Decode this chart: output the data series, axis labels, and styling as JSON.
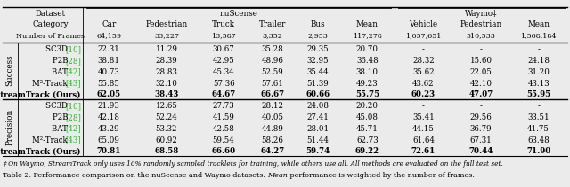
{
  "nuscense_cols": [
    "Car",
    "Pedestrian",
    "Truck",
    "Trailer",
    "Bus",
    "Mean"
  ],
  "waymo_cols": [
    "Vehicle",
    "Pedestrian",
    "Mean"
  ],
  "frame_nums": [
    "64,159",
    "33,227",
    "13,587",
    "3,352",
    "2,953",
    "117,278",
    "1,057,651",
    "510,533",
    "1,568,184"
  ],
  "success_rows": [
    {
      "method": "SC3D",
      "ref": "10",
      "vals": [
        "22.31",
        "11.29",
        "30.67",
        "35.28",
        "29.35",
        "20.70",
        "-",
        "-",
        "-"
      ]
    },
    {
      "method": "P2B",
      "ref": "28",
      "vals": [
        "38.81",
        "28.39",
        "42.95",
        "48.96",
        "32.95",
        "36.48",
        "28.32",
        "15.60",
        "24.18"
      ]
    },
    {
      "method": "BAT",
      "ref": "42",
      "vals": [
        "40.73",
        "28.83",
        "45.34",
        "52.59",
        "35.44",
        "38.10",
        "35.62",
        "22.05",
        "31.20"
      ]
    },
    {
      "method": "M²-Track",
      "ref": "43",
      "vals": [
        "55.85",
        "32.10",
        "57.36",
        "57.61",
        "51.39",
        "49.23",
        "43.62",
        "42.10",
        "43.13"
      ]
    },
    {
      "method": "StreamTrack (Ours)",
      "ref": "",
      "vals": [
        "62.05",
        "38.43",
        "64.67",
        "66.67",
        "60.66",
        "55.75",
        "60.23",
        "47.07",
        "55.95"
      ]
    }
  ],
  "precision_rows": [
    {
      "method": "SC3D",
      "ref": "10",
      "vals": [
        "21.93",
        "12.65",
        "27.73",
        "28.12",
        "24.08",
        "20.20",
        "-",
        "-",
        "-"
      ]
    },
    {
      "method": "P2B",
      "ref": "28",
      "vals": [
        "42.18",
        "52.24",
        "41.59",
        "40.05",
        "27.41",
        "45.08",
        "35.41",
        "29.56",
        "33.51"
      ]
    },
    {
      "method": "BAT",
      "ref": "42",
      "vals": [
        "43.29",
        "53.32",
        "42.58",
        "44.89",
        "28.01",
        "45.71",
        "44.15",
        "36.79",
        "41.75"
      ]
    },
    {
      "method": "M²-Track",
      "ref": "43",
      "vals": [
        "65.09",
        "60.92",
        "59.54",
        "58.26",
        "51.44",
        "62.73",
        "61.64",
        "67.31",
        "63.48"
      ]
    },
    {
      "method": "StreamTrack (Ours)",
      "ref": "",
      "vals": [
        "70.81",
        "68.58",
        "66.60",
        "64.27",
        "59.74",
        "69.22",
        "72.61",
        "70.44",
        "71.90"
      ]
    }
  ],
  "footnote": "‡ On Waymo, StreamTrack only uses 10% randomly sampled tracklets for training, while others use all. All methods are evaluated on the full test set.",
  "caption_part1": "Table 2. Performance comparison on the nuScense and Waymo datasets. ",
  "caption_italic": "Mean",
  "caption_part2": " performance is weighted by the number of frames.",
  "green": "#22bb22",
  "bg": "#ebebeb",
  "fs_header": 6.3,
  "fs_data": 6.2,
  "fs_small": 5.8,
  "fs_footnote": 5.3,
  "rh": 12.8
}
